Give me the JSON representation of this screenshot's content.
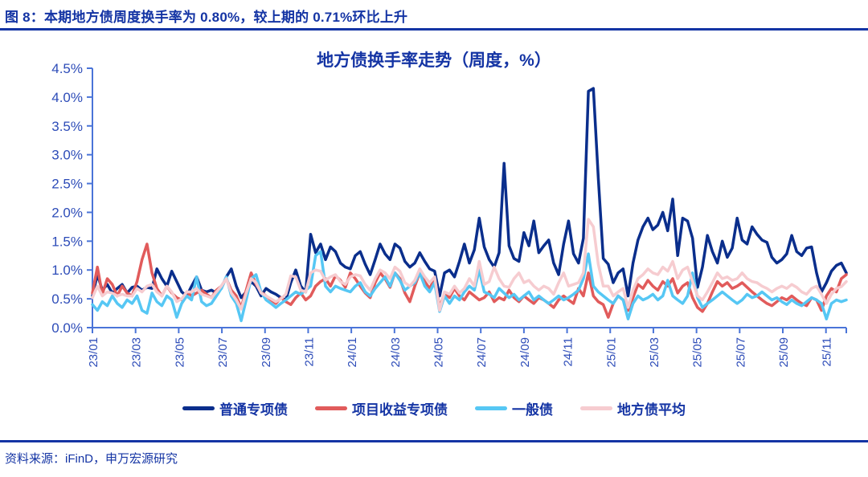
{
  "figure": {
    "caption": "图 8：本期地方债周度换手率为 0.80%，较上期的 0.71%环比上升",
    "source": "资料来源：iFinD，申万宏源研究",
    "current_turnover": "0.80%",
    "previous_turnover": "0.71%"
  },
  "colors": {
    "heading_text": "#1434a4",
    "axis_line": "#4a74d8",
    "axis_label": "#2d4cb8",
    "navy": "#0a2e8c",
    "red": "#e15b5b",
    "cyan": "#56c7f4",
    "pink": "#f6ccd0"
  },
  "chart_data": {
    "type": "line",
    "title": "地方债换手率走势（周度，%）",
    "frequency": "weekly",
    "unit": "%",
    "grid": false,
    "legend_position": "bottom",
    "ylim": [
      0,
      4.5
    ],
    "y_tick_step": 0.5,
    "y_tick_labels": [
      "0.0%",
      "0.5%",
      "1.0%",
      "1.5%",
      "2.0%",
      "2.5%",
      "3.0%",
      "3.5%",
      "4.0%",
      "4.5%"
    ],
    "x_tick_labels": [
      "23/01",
      "23/03",
      "23/05",
      "23/07",
      "23/09",
      "23/11",
      "24/01",
      "24/03",
      "24/05",
      "24/07",
      "24/09",
      "24/11",
      "25/01",
      "25/03",
      "25/05",
      "25/07",
      "25/09",
      "25/11"
    ],
    "weeks_per_x_tick": 8.7,
    "series": [
      {
        "name": "普通专项债",
        "color": "#0a2e8c",
        "values": [
          0.55,
          0.92,
          0.65,
          0.75,
          0.6,
          0.68,
          0.75,
          0.6,
          0.7,
          0.72,
          0.65,
          0.7,
          0.68,
          1.02,
          0.85,
          0.72,
          0.98,
          0.8,
          0.62,
          0.55,
          0.72,
          0.88,
          0.65,
          0.62,
          0.65,
          0.6,
          0.68,
          0.88,
          1.02,
          0.72,
          0.52,
          0.62,
          0.8,
          0.72,
          0.55,
          0.68,
          0.62,
          0.58,
          0.52,
          0.48,
          0.78,
          1.0,
          0.72,
          0.62,
          1.62,
          1.3,
          1.45,
          1.18,
          1.4,
          1.32,
          1.12,
          1.05,
          1.02,
          1.25,
          1.32,
          1.1,
          0.92,
          1.18,
          1.45,
          1.28,
          1.18,
          1.45,
          1.38,
          1.15,
          1.05,
          1.12,
          1.3,
          1.15,
          1.02,
          0.98,
          0.55,
          0.95,
          1.0,
          0.88,
          1.15,
          1.45,
          1.12,
          1.35,
          1.9,
          1.4,
          1.18,
          1.05,
          1.3,
          2.85,
          1.42,
          1.2,
          1.15,
          1.65,
          1.42,
          1.85,
          1.3,
          1.42,
          1.52,
          1.12,
          0.92,
          1.45,
          1.85,
          1.28,
          1.12,
          1.55,
          4.1,
          4.15,
          2.6,
          1.2,
          1.1,
          0.78,
          0.95,
          1.02,
          0.55,
          1.12,
          1.52,
          1.75,
          1.9,
          1.7,
          1.78,
          2.0,
          1.68,
          2.23,
          1.25,
          1.9,
          1.85,
          1.55,
          0.7,
          1.05,
          1.6,
          1.32,
          1.12,
          1.5,
          1.22,
          1.38,
          1.9,
          1.52,
          1.45,
          1.75,
          1.62,
          1.52,
          1.48,
          1.22,
          1.12,
          1.18,
          1.28,
          1.6,
          1.32,
          1.25,
          1.38,
          1.4,
          0.95,
          0.62,
          0.78,
          0.98,
          1.08,
          1.12,
          0.95
        ]
      },
      {
        "name": "项目收益专项债",
        "color": "#e15b5b",
        "values": [
          0.6,
          1.05,
          0.58,
          0.85,
          0.75,
          0.55,
          0.72,
          0.6,
          0.55,
          0.8,
          1.18,
          1.45,
          0.95,
          0.68,
          0.55,
          0.72,
          0.6,
          0.52,
          0.48,
          0.62,
          0.55,
          0.6,
          0.65,
          0.58,
          0.52,
          0.65,
          0.72,
          0.85,
          0.65,
          0.55,
          0.35,
          0.65,
          0.95,
          0.75,
          0.62,
          0.55,
          0.48,
          0.42,
          0.52,
          0.45,
          0.4,
          0.52,
          0.6,
          0.48,
          0.55,
          0.72,
          0.8,
          0.85,
          0.72,
          0.9,
          0.82,
          0.7,
          0.95,
          0.85,
          0.72,
          0.6,
          0.52,
          0.78,
          0.95,
          0.85,
          0.7,
          0.95,
          0.85,
          0.6,
          0.45,
          0.72,
          0.95,
          0.8,
          0.68,
          0.85,
          0.35,
          0.6,
          0.52,
          0.68,
          0.55,
          0.48,
          0.62,
          0.55,
          0.48,
          0.52,
          0.62,
          0.45,
          0.52,
          0.48,
          0.65,
          0.52,
          0.45,
          0.55,
          0.48,
          0.42,
          0.52,
          0.48,
          0.42,
          0.35,
          0.48,
          0.55,
          0.48,
          0.42,
          0.68,
          0.55,
          0.95,
          0.55,
          0.45,
          0.4,
          0.18,
          0.42,
          0.55,
          0.48,
          0.3,
          0.52,
          0.75,
          0.68,
          0.82,
          0.72,
          0.65,
          0.8,
          0.72,
          0.85,
          0.6,
          0.72,
          0.78,
          0.52,
          0.35,
          0.28,
          0.42,
          0.62,
          0.8,
          0.72,
          0.78,
          0.68,
          0.72,
          0.78,
          0.7,
          0.62,
          0.55,
          0.48,
          0.42,
          0.38,
          0.45,
          0.52,
          0.48,
          0.55,
          0.48,
          0.42,
          0.38,
          0.52,
          0.48,
          0.3,
          0.55,
          0.68,
          0.62,
          0.85,
          0.92
        ]
      },
      {
        "name": "一般债",
        "color": "#56c7f4",
        "values": [
          0.4,
          0.3,
          0.45,
          0.38,
          0.55,
          0.42,
          0.35,
          0.48,
          0.42,
          0.55,
          0.3,
          0.25,
          0.6,
          0.45,
          0.38,
          0.55,
          0.48,
          0.18,
          0.42,
          0.55,
          0.48,
          0.88,
          0.45,
          0.38,
          0.42,
          0.55,
          0.68,
          0.88,
          0.55,
          0.42,
          0.12,
          0.48,
          0.85,
          0.92,
          0.62,
          0.48,
          0.42,
          0.35,
          0.42,
          0.48,
          0.55,
          0.62,
          0.58,
          0.65,
          0.72,
          1.25,
          1.32,
          0.72,
          0.62,
          0.72,
          0.68,
          0.65,
          0.62,
          0.72,
          0.78,
          0.62,
          0.55,
          0.68,
          0.78,
          0.88,
          0.72,
          0.95,
          0.82,
          0.65,
          0.72,
          0.78,
          0.95,
          0.72,
          0.62,
          0.78,
          0.28,
          0.55,
          0.42,
          0.55,
          0.48,
          0.62,
          0.72,
          0.65,
          1.0,
          0.62,
          0.58,
          0.52,
          0.68,
          0.6,
          0.52,
          0.58,
          0.48,
          0.55,
          0.62,
          0.48,
          0.55,
          0.48,
          0.42,
          0.48,
          0.55,
          0.48,
          0.52,
          0.58,
          0.65,
          0.85,
          1.28,
          0.72,
          0.62,
          0.55,
          0.48,
          0.42,
          0.55,
          0.48,
          0.15,
          0.42,
          0.55,
          0.48,
          0.52,
          0.58,
          0.48,
          0.55,
          0.82,
          0.55,
          0.48,
          0.42,
          0.55,
          0.95,
          0.52,
          0.35,
          0.42,
          0.48,
          0.55,
          0.62,
          0.55,
          0.48,
          0.42,
          0.48,
          0.58,
          0.52,
          0.55,
          0.62,
          0.55,
          0.48,
          0.52,
          0.45,
          0.4,
          0.48,
          0.42,
          0.38,
          0.45,
          0.52,
          0.48,
          0.42,
          0.15,
          0.42,
          0.48,
          0.45,
          0.48
        ]
      },
      {
        "name": "地方债平均",
        "color": "#f6ccd0",
        "values": [
          0.52,
          0.72,
          0.55,
          0.62,
          0.6,
          0.55,
          0.58,
          0.55,
          0.55,
          0.68,
          0.62,
          0.72,
          0.75,
          0.62,
          0.55,
          0.72,
          0.62,
          0.45,
          0.5,
          0.62,
          0.62,
          0.68,
          0.58,
          0.55,
          0.52,
          0.62,
          0.72,
          0.85,
          0.6,
          0.48,
          0.32,
          0.6,
          0.85,
          0.78,
          0.6,
          0.55,
          0.5,
          0.45,
          0.5,
          0.58,
          0.9,
          0.88,
          0.65,
          0.62,
          0.95,
          1.0,
          0.98,
          0.82,
          0.88,
          0.92,
          0.8,
          0.75,
          0.88,
          0.92,
          0.9,
          0.75,
          0.65,
          0.85,
          1.0,
          0.95,
          0.85,
          1.05,
          0.98,
          0.78,
          0.72,
          0.82,
          1.02,
          0.88,
          0.78,
          0.88,
          0.3,
          0.62,
          0.58,
          0.72,
          0.6,
          0.68,
          0.85,
          0.72,
          1.15,
          0.75,
          0.8,
          1.05,
          0.85,
          0.72,
          0.7,
          0.85,
          0.95,
          0.78,
          0.82,
          0.72,
          0.65,
          0.72,
          0.68,
          0.58,
          0.78,
          0.95,
          0.72,
          0.75,
          0.78,
          0.95,
          1.88,
          1.75,
          1.1,
          0.72,
          0.72,
          0.55,
          0.62,
          0.68,
          0.35,
          0.65,
          0.85,
          0.92,
          1.02,
          0.95,
          0.92,
          1.05,
          0.98,
          1.15,
          0.85,
          1.0,
          1.05,
          0.8,
          0.55,
          0.48,
          0.62,
          0.78,
          0.95,
          0.85,
          0.88,
          0.82,
          0.85,
          0.95,
          0.85,
          0.8,
          0.78,
          0.72,
          0.68,
          0.62,
          0.68,
          0.72,
          0.68,
          0.75,
          0.7,
          0.62,
          0.58,
          0.68,
          0.72,
          0.58,
          0.42,
          0.58,
          0.68,
          0.71,
          0.8
        ]
      }
    ]
  }
}
